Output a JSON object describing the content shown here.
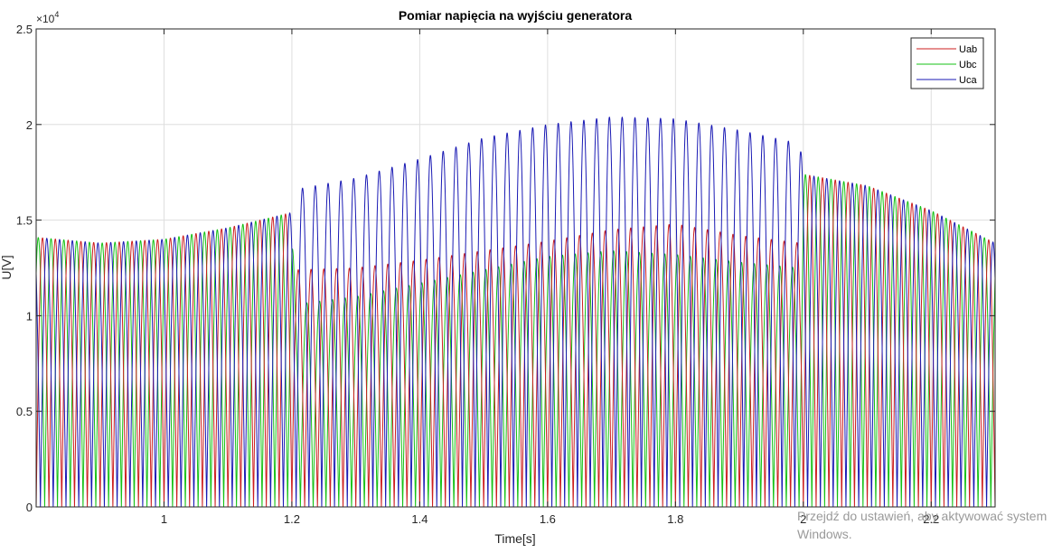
{
  "chart_data": {
    "type": "line",
    "title": "Pomiar napięcia na wyjściu generatora",
    "xlabel": "Time[s]",
    "ylabel": "U[V]",
    "y_exponent": "×10^4",
    "y_exponent_base": "×10",
    "y_exponent_power": "4",
    "xlim": [
      0.8,
      2.3
    ],
    "ylim": [
      0,
      2.5
    ],
    "x_ticks": [
      "1",
      "1.2",
      "1.4",
      "1.6",
      "1.8",
      "2",
      "2.2"
    ],
    "x_tick_values": [
      1.0,
      1.2,
      1.4,
      1.6,
      1.8,
      2.0,
      2.2
    ],
    "y_ticks": [
      "0",
      "0.5",
      "1",
      "1.5",
      "2",
      "2.5"
    ],
    "y_tick_values": [
      0,
      0.5,
      1.0,
      1.5,
      2.0,
      2.5
    ],
    "grid": true,
    "legend_position": "top-right",
    "cycles_per_second": 50,
    "series": [
      {
        "name": "Uab",
        "color": "#cc1f1f",
        "envelope_x": [
          0.8,
          0.9,
          1.0,
          1.1,
          1.2,
          1.205,
          1.3,
          1.4,
          1.5,
          1.6,
          1.7,
          1.8,
          1.9,
          1.995,
          2.0,
          2.1,
          2.2,
          2.3
        ],
        "envelope_y": [
          1.41,
          1.38,
          1.4,
          1.46,
          1.54,
          1.24,
          1.25,
          1.29,
          1.34,
          1.39,
          1.45,
          1.48,
          1.42,
          1.38,
          1.74,
          1.68,
          1.55,
          1.38
        ]
      },
      {
        "name": "Ubc",
        "color": "#16c116",
        "envelope_x": [
          0.8,
          0.9,
          1.0,
          1.1,
          1.2,
          1.205,
          1.3,
          1.4,
          1.5,
          1.6,
          1.7,
          1.8,
          1.9,
          1.995,
          2.0,
          2.1,
          2.2,
          2.3
        ],
        "envelope_y": [
          1.41,
          1.38,
          1.4,
          1.46,
          1.54,
          1.06,
          1.1,
          1.17,
          1.24,
          1.31,
          1.34,
          1.32,
          1.28,
          1.25,
          1.74,
          1.68,
          1.55,
          1.38
        ]
      },
      {
        "name": "Uca",
        "color": "#1a1ab4",
        "envelope_x": [
          0.8,
          0.9,
          1.0,
          1.1,
          1.2,
          1.205,
          1.3,
          1.4,
          1.5,
          1.6,
          1.7,
          1.8,
          1.9,
          1.995,
          2.0,
          2.1,
          2.2,
          2.3
        ],
        "envelope_y": [
          1.41,
          1.38,
          1.4,
          1.46,
          1.54,
          1.66,
          1.72,
          1.82,
          1.93,
          2.0,
          2.04,
          2.03,
          1.97,
          1.9,
          1.74,
          1.68,
          1.55,
          1.38
        ]
      }
    ]
  },
  "watermark": {
    "line1": "Przejdź do ustawień, aby aktywować system",
    "line2": "Windows."
  }
}
